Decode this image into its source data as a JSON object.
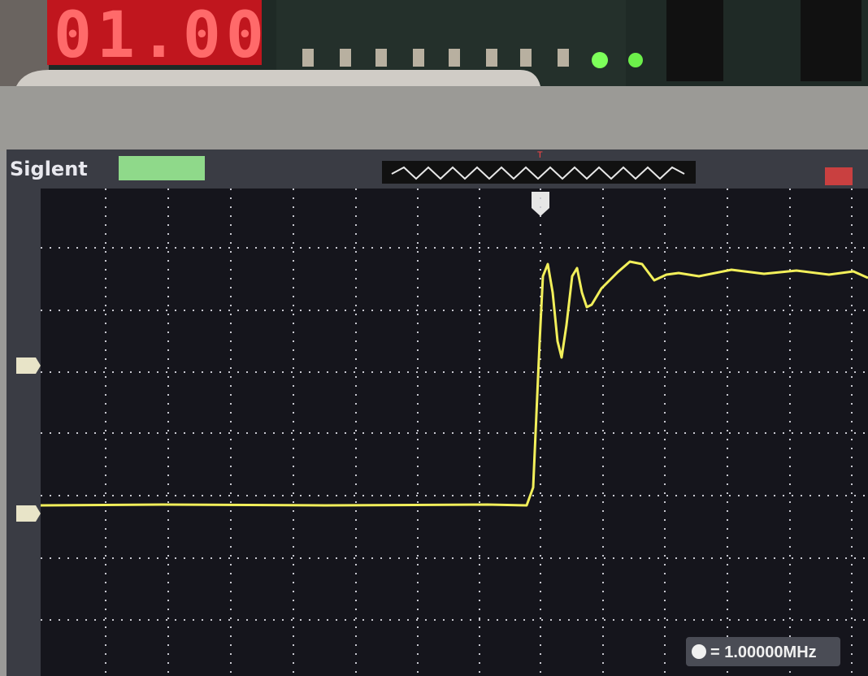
{
  "display": {
    "digits": "01.00"
  },
  "scope": {
    "brand": "Siglent",
    "trigger_label": "T",
    "frequency": "= 1.00000MHz"
  }
}
